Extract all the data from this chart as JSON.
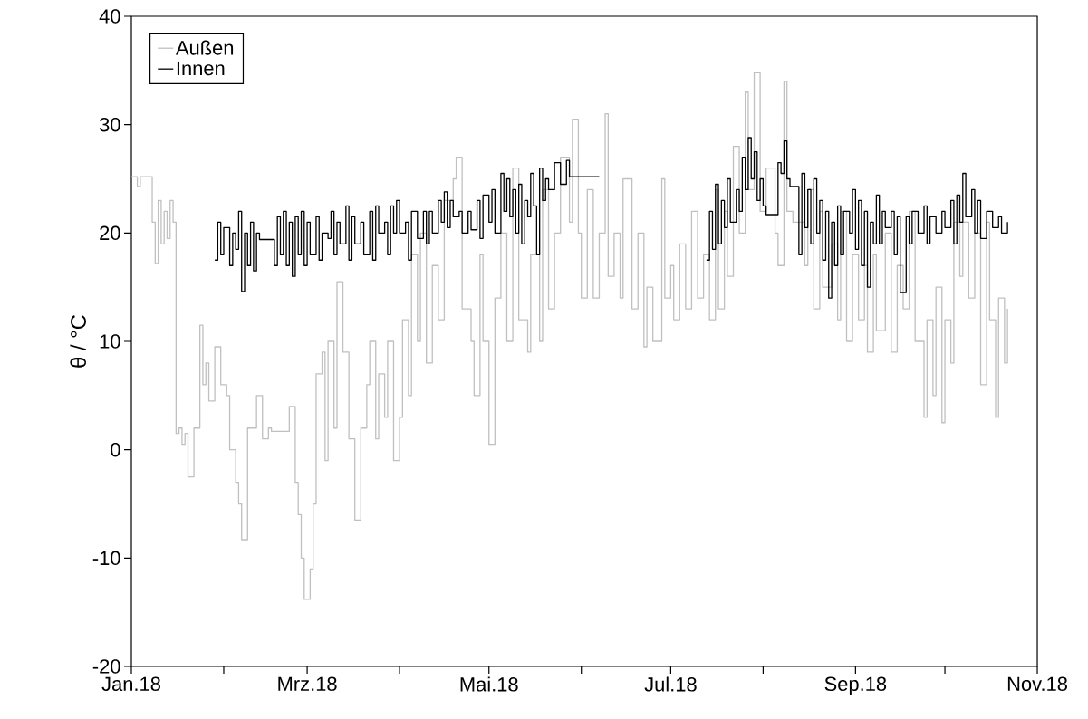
{
  "chart_data": {
    "type": "step",
    "ylabel": "θ / °C",
    "legend": "top left",
    "xlim": [
      "2018-01-01",
      "2018-11-01"
    ],
    "xticks": [
      {
        "value": "2018-01-01",
        "label": "Jan.18"
      },
      {
        "value": "2018-02-01",
        "label": null
      },
      {
        "value": "2018-03-01",
        "label": "Mrz.18"
      },
      {
        "value": "2018-04-01",
        "label": null
      },
      {
        "value": "2018-05-01",
        "label": "Mai.18"
      },
      {
        "value": "2018-06-01",
        "label": null
      },
      {
        "value": "2018-07-01",
        "label": "Jul.18"
      },
      {
        "value": "2018-08-01",
        "label": null
      },
      {
        "value": "2018-09-01",
        "label": "Sep.18"
      },
      {
        "value": "2018-10-01",
        "label": null
      },
      {
        "value": "2018-11-01",
        "label": "Nov.18"
      }
    ],
    "ylim": [
      -20,
      40
    ],
    "yticks": [
      -20,
      -10,
      0,
      10,
      20,
      30,
      40
    ],
    "series": [
      {
        "name": "Außen",
        "color": "#c0c0c0",
        "x": [
          "2018-01-01",
          "2018-01-03",
          "2018-01-04",
          "2018-01-07",
          "2018-01-08",
          "2018-01-09",
          "2018-01-10",
          "2018-01-11",
          "2018-01-12",
          "2018-01-13",
          "2018-01-14",
          "2018-01-15",
          "2018-01-16",
          "2018-01-17",
          "2018-01-18",
          "2018-01-19",
          "2018-01-20",
          "2018-01-22",
          "2018-01-24",
          "2018-01-25",
          "2018-01-26",
          "2018-01-27",
          "2018-01-29",
          "2018-01-31",
          "2018-02-02",
          "2018-02-03",
          "2018-02-05",
          "2018-02-06",
          "2018-02-07",
          "2018-02-09",
          "2018-02-12",
          "2018-02-14",
          "2018-02-16",
          "2018-02-17",
          "2018-02-22",
          "2018-02-23",
          "2018-02-25",
          "2018-02-26",
          "2018-02-27",
          "2018-02-28",
          "2018-03-02",
          "2018-03-03",
          "2018-03-04",
          "2018-03-06",
          "2018-03-07",
          "2018-03-08",
          "2018-03-10",
          "2018-03-11",
          "2018-03-13",
          "2018-03-15",
          "2018-03-17",
          "2018-03-19",
          "2018-03-21",
          "2018-03-22",
          "2018-03-24",
          "2018-03-25",
          "2018-03-27",
          "2018-03-28",
          "2018-03-30",
          "2018-04-01",
          "2018-04-02",
          "2018-04-04",
          "2018-04-05",
          "2018-04-07",
          "2018-04-08",
          "2018-04-10",
          "2018-04-12",
          "2018-04-14",
          "2018-04-16",
          "2018-04-19",
          "2018-04-20",
          "2018-04-22",
          "2018-04-25",
          "2018-04-26",
          "2018-04-28",
          "2018-04-29",
          "2018-05-01",
          "2018-05-03",
          "2018-05-05",
          "2018-05-07",
          "2018-05-09",
          "2018-05-11",
          "2018-05-14",
          "2018-05-15",
          "2018-05-18",
          "2018-05-19",
          "2018-05-21",
          "2018-05-23",
          "2018-05-25",
          "2018-05-28",
          "2018-05-29",
          "2018-05-31",
          "2018-06-01",
          "2018-06-03",
          "2018-06-05",
          "2018-06-07",
          "2018-06-09",
          "2018-06-10",
          "2018-06-12",
          "2018-06-14",
          "2018-06-15",
          "2018-06-18",
          "2018-06-20",
          "2018-06-22",
          "2018-06-23",
          "2018-06-25",
          "2018-06-28",
          "2018-06-29",
          "2018-07-01",
          "2018-07-02",
          "2018-07-04",
          "2018-07-06",
          "2018-07-08",
          "2018-07-10",
          "2018-07-12",
          "2018-07-14",
          "2018-07-16",
          "2018-07-17",
          "2018-07-19",
          "2018-07-20",
          "2018-07-22",
          "2018-07-24",
          "2018-07-26",
          "2018-07-27",
          "2018-07-29",
          "2018-07-31",
          "2018-08-02",
          "2018-08-03",
          "2018-08-05",
          "2018-08-06",
          "2018-08-08",
          "2018-08-09",
          "2018-08-11",
          "2018-08-13",
          "2018-08-15",
          "2018-08-16",
          "2018-08-18",
          "2018-08-20",
          "2018-08-21",
          "2018-08-24",
          "2018-08-26",
          "2018-08-27",
          "2018-08-29",
          "2018-08-31",
          "2018-09-02",
          "2018-09-04",
          "2018-09-05",
          "2018-09-07",
          "2018-09-08",
          "2018-09-11",
          "2018-09-13",
          "2018-09-15",
          "2018-09-17",
          "2018-09-19",
          "2018-09-21",
          "2018-09-24",
          "2018-09-25",
          "2018-09-27",
          "2018-09-28",
          "2018-09-30",
          "2018-10-01",
          "2018-10-03",
          "2018-10-04",
          "2018-10-06",
          "2018-10-07",
          "2018-10-09",
          "2018-10-11",
          "2018-10-13",
          "2018-10-15",
          "2018-10-16",
          "2018-10-18",
          "2018-10-19",
          "2018-10-21",
          "2018-10-22"
        ],
        "values": [
          25.2,
          24.3,
          25.2,
          25.2,
          21,
          17.2,
          23,
          19,
          22,
          19.5,
          23,
          21,
          1.5,
          2,
          0.5,
          1.5,
          -2.5,
          2,
          11.5,
          6,
          8,
          4.5,
          9.5,
          6,
          5,
          0,
          -3,
          -5,
          -8.3,
          2,
          5,
          1,
          2,
          1.7,
          1.7,
          4,
          -3,
          -6,
          -10,
          -13.8,
          -11,
          -5,
          7,
          9,
          -1,
          10,
          2,
          15.5,
          9,
          1,
          -6.5,
          2,
          6,
          10,
          1,
          7,
          3,
          10,
          -1,
          3,
          12,
          5,
          18,
          10,
          20,
          8,
          17,
          12,
          23,
          25,
          27,
          13,
          10,
          5,
          18,
          10,
          0.5,
          14,
          20,
          10,
          26,
          12,
          9,
          18,
          10,
          24,
          13,
          20,
          27,
          21,
          30.5,
          20,
          14,
          24,
          14,
          20,
          31,
          16,
          20,
          14,
          25,
          13,
          20,
          9.5,
          15,
          10,
          25,
          14,
          17,
          12,
          19,
          13,
          22,
          14,
          18,
          12,
          24,
          13,
          22,
          16,
          28,
          20,
          33,
          24,
          34.8,
          22,
          26,
          26,
          20,
          17,
          34,
          22,
          21,
          21,
          17,
          24,
          13,
          22,
          15,
          19,
          12,
          22,
          10,
          18,
          12,
          17,
          9,
          18,
          11,
          20,
          9,
          17,
          13,
          22,
          10,
          3,
          12,
          5,
          15,
          2.5,
          12,
          8,
          21,
          16,
          21,
          14,
          20,
          6,
          21,
          12,
          3,
          14,
          8,
          13
        ]
      },
      {
        "name": "Innen",
        "color": "#000000",
        "x": [
          "2018-01-29",
          "2018-01-30",
          "2018-01-31",
          "2018-02-01",
          "2018-02-03",
          "2018-02-04",
          "2018-02-05",
          "2018-02-06",
          "2018-02-07",
          "2018-02-08",
          "2018-02-09",
          "2018-02-10",
          "2018-02-11",
          "2018-02-12",
          "2018-02-13",
          "2018-02-17",
          "2018-02-18",
          "2018-02-19",
          "2018-02-20",
          "2018-02-21",
          "2018-02-22",
          "2018-02-23",
          "2018-02-24",
          "2018-02-25",
          "2018-02-26",
          "2018-02-27",
          "2018-02-28",
          "2018-03-01",
          "2018-03-02",
          "2018-03-04",
          "2018-03-05",
          "2018-03-06",
          "2018-03-08",
          "2018-03-09",
          "2018-03-10",
          "2018-03-11",
          "2018-03-12",
          "2018-03-14",
          "2018-03-15",
          "2018-03-16",
          "2018-03-17",
          "2018-03-19",
          "2018-03-20",
          "2018-03-22",
          "2018-03-23",
          "2018-03-24",
          "2018-03-25",
          "2018-03-27",
          "2018-03-28",
          "2018-03-29",
          "2018-03-30",
          "2018-03-31",
          "2018-04-01",
          "2018-04-03",
          "2018-04-04",
          "2018-04-05",
          "2018-04-07",
          "2018-04-09",
          "2018-04-10",
          "2018-04-11",
          "2018-04-12",
          "2018-04-14",
          "2018-04-15",
          "2018-04-16",
          "2018-04-17",
          "2018-04-18",
          "2018-04-19",
          "2018-04-21",
          "2018-04-22",
          "2018-04-24",
          "2018-04-25",
          "2018-04-27",
          "2018-04-28",
          "2018-04-29",
          "2018-05-01",
          "2018-05-02",
          "2018-05-03",
          "2018-05-05",
          "2018-05-06",
          "2018-05-07",
          "2018-05-08",
          "2018-05-09",
          "2018-05-10",
          "2018-05-11",
          "2018-05-12",
          "2018-05-13",
          "2018-05-14",
          "2018-05-15",
          "2018-05-16",
          "2018-05-17",
          "2018-05-18",
          "2018-05-19",
          "2018-05-20",
          "2018-05-21",
          "2018-05-23",
          "2018-05-25",
          "2018-05-27",
          "2018-05-28",
          "2018-06-07",
          "2018-06-25",
          "2018-07-13",
          "2018-07-14",
          "2018-07-15",
          "2018-07-16",
          "2018-07-17",
          "2018-07-18",
          "2018-07-19",
          "2018-07-20",
          "2018-07-21",
          "2018-07-23",
          "2018-07-24",
          "2018-07-25",
          "2018-07-26",
          "2018-07-27",
          "2018-07-28",
          "2018-07-29",
          "2018-07-30",
          "2018-07-31",
          "2018-08-01",
          "2018-08-02",
          "2018-08-05",
          "2018-08-06",
          "2018-08-07",
          "2018-08-08",
          "2018-08-09",
          "2018-08-10",
          "2018-08-12",
          "2018-08-13",
          "2018-08-14",
          "2018-08-15",
          "2018-08-16",
          "2018-08-17",
          "2018-08-18",
          "2018-08-19",
          "2018-08-20",
          "2018-08-21",
          "2018-08-22",
          "2018-08-23",
          "2018-08-24",
          "2018-08-25",
          "2018-08-26",
          "2018-08-27",
          "2018-08-28",
          "2018-08-30",
          "2018-08-31",
          "2018-09-01",
          "2018-09-02",
          "2018-09-03",
          "2018-09-04",
          "2018-09-05",
          "2018-09-06",
          "2018-09-07",
          "2018-09-08",
          "2018-09-09",
          "2018-09-10",
          "2018-09-11",
          "2018-09-13",
          "2018-09-14",
          "2018-09-15",
          "2018-09-16",
          "2018-09-18",
          "2018-09-19",
          "2018-09-20",
          "2018-09-22",
          "2018-09-24",
          "2018-09-25",
          "2018-09-26",
          "2018-09-28",
          "2018-09-30",
          "2018-10-01",
          "2018-10-03",
          "2018-10-04",
          "2018-10-05",
          "2018-10-06",
          "2018-10-07",
          "2018-10-08",
          "2018-10-10",
          "2018-10-11",
          "2018-10-12",
          "2018-10-13",
          "2018-10-15",
          "2018-10-17",
          "2018-10-19",
          "2018-10-20",
          "2018-10-22"
        ],
        "values": [
          17.5,
          21,
          18,
          20.5,
          17,
          20,
          18.5,
          22,
          14.6,
          20,
          17,
          21,
          16.5,
          20,
          19.4,
          19.4,
          17,
          21.5,
          18,
          22,
          17,
          21,
          16,
          21.5,
          18,
          22,
          17,
          21,
          18,
          21.5,
          17.5,
          20,
          19.5,
          22,
          18,
          21,
          19,
          22.5,
          17.5,
          21.5,
          19,
          21,
          18,
          22,
          17.5,
          22.5,
          20,
          21,
          18,
          22.5,
          20,
          23,
          20,
          21,
          17.5,
          22,
          19.5,
          22,
          19,
          22,
          20,
          23,
          21,
          23.8,
          20.5,
          23,
          21.5,
          22,
          20,
          22,
          20.3,
          23,
          19.5,
          23.5,
          21,
          24,
          20,
          25.5,
          22,
          25,
          21.5,
          24,
          20,
          24.5,
          19,
          23,
          21.5,
          25.5,
          22.5,
          18,
          26,
          23,
          25,
          24,
          26.5,
          24.5,
          26.7,
          25.2,
          25.2,
          null,
          17.5,
          22,
          18.5,
          24.5,
          19,
          23,
          20.5,
          25,
          21,
          24,
          22,
          27,
          24,
          28.8,
          25,
          27.5,
          23,
          25,
          22.5,
          21.7,
          21.7,
          26.5,
          25.5,
          28.5,
          25,
          24.3,
          24.3,
          18,
          25.5,
          20.5,
          24,
          19,
          25,
          20,
          23,
          17.5,
          22,
          14,
          21,
          17,
          22.5,
          18,
          22,
          20,
          24,
          18.5,
          23,
          17,
          22,
          15,
          21,
          19,
          23.5,
          19,
          22,
          20.5,
          22,
          18,
          21.5,
          14.5,
          21.5,
          19,
          22,
          20,
          22.5,
          19,
          21.5,
          20,
          22,
          20.5,
          23,
          19,
          23.5,
          21,
          25.5,
          21.5,
          24,
          20,
          23,
          19.5,
          22,
          20.5,
          21.5,
          20,
          21
        ]
      }
    ]
  }
}
